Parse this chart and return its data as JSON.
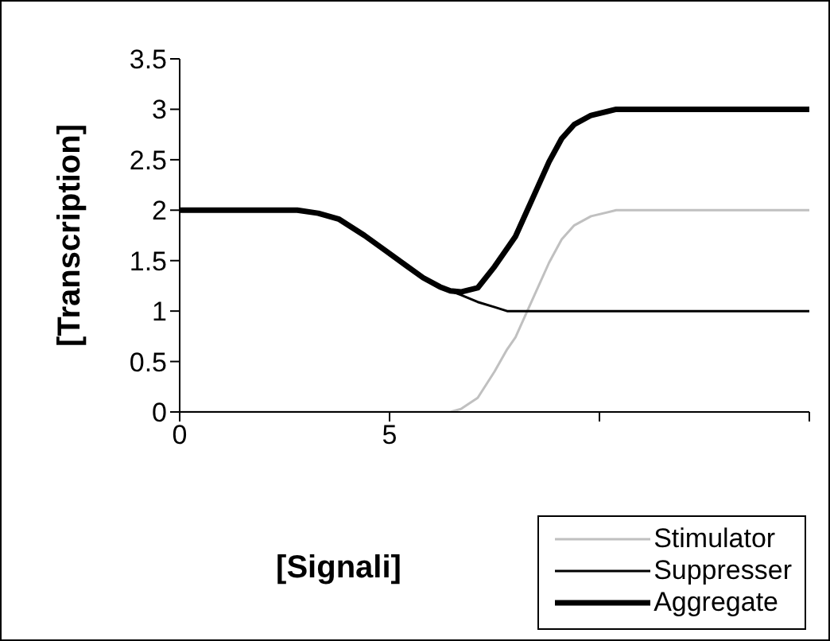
{
  "chart_data": {
    "type": "line",
    "xlabel": "[Signali]",
    "ylabel": "[Transcription]",
    "x": [
      0,
      1,
      2,
      2.8,
      3.3,
      3.8,
      4.4,
      4.9,
      5.4,
      5.8,
      6.2,
      6.45,
      6.7,
      7.1,
      7.5,
      7.8,
      8,
      8.4,
      8.8,
      9.1,
      9.4,
      9.8,
      10.4,
      11,
      12,
      13,
      14,
      15
    ],
    "series": [
      {
        "name": "Stimulator",
        "color": "#c0c0c0",
        "values": [
          0,
          0,
          0,
          0,
          0,
          0,
          0,
          0,
          0,
          0,
          0,
          0,
          0.03,
          0.14,
          0.4,
          0.62,
          0.74,
          1.11,
          1.48,
          1.71,
          1.85,
          1.94,
          2,
          2,
          2,
          2,
          2,
          2
        ]
      },
      {
        "name": "Suppresser",
        "color": "#000000",
        "values": [
          2,
          2,
          2,
          2,
          1.97,
          1.91,
          1.75,
          1.6,
          1.45,
          1.33,
          1.24,
          1.2,
          1.16,
          1.09,
          1.04,
          1,
          1,
          1,
          1,
          1,
          1,
          1,
          1,
          1,
          1,
          1,
          1,
          1
        ]
      },
      {
        "name": "Aggregate",
        "color": "#000000",
        "values": [
          2,
          2,
          2,
          2,
          1.97,
          1.91,
          1.75,
          1.6,
          1.45,
          1.33,
          1.24,
          1.2,
          1.19,
          1.23,
          1.44,
          1.62,
          1.74,
          2.11,
          2.48,
          2.71,
          2.85,
          2.94,
          3,
          3,
          3,
          3,
          3,
          3
        ]
      }
    ],
    "xlim": [
      0,
      15
    ],
    "xticks": [
      0,
      5,
      {
        "value": 10,
        "label": null
      },
      {
        "value": 15,
        "label": null
      }
    ],
    "ylim": [
      0,
      3.5
    ],
    "yticks": [
      0,
      0.5,
      1,
      1.5,
      2,
      2.5,
      3,
      3.5
    ],
    "grid": false,
    "legend": "bottom right",
    "marker": "none",
    "line_style": "solid"
  }
}
